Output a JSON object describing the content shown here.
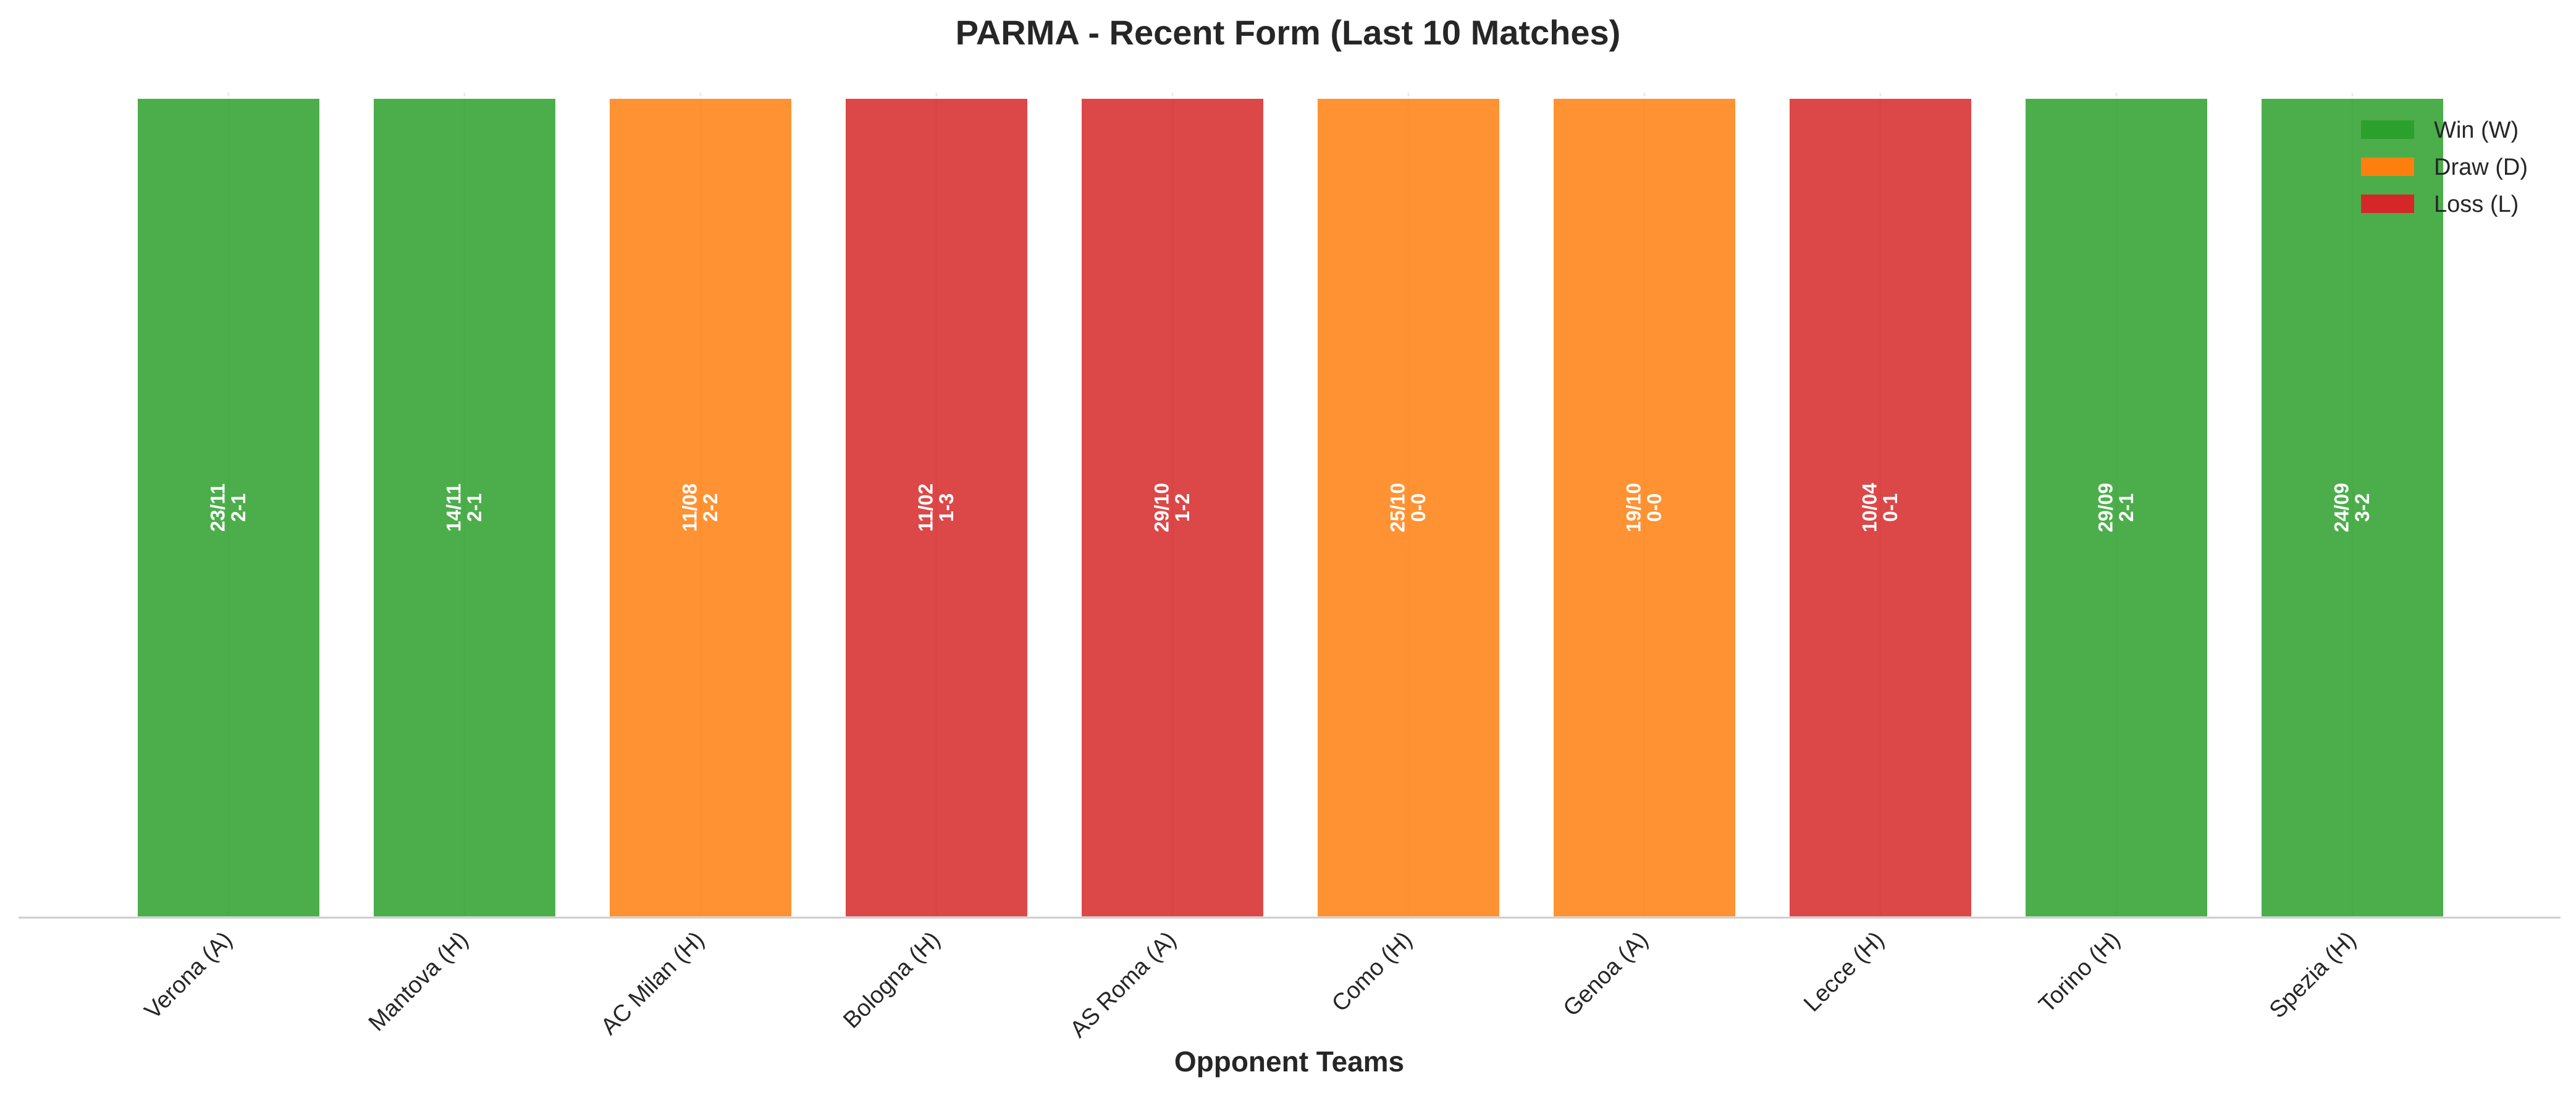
{
  "chart_data": {
    "type": "bar",
    "title": "PARMA - Recent Form (Last 10 Matches)",
    "xlabel": "Opponent Teams",
    "ylabel": "",
    "ylim": [
      0,
      1
    ],
    "grid": "vertical lines at category centers",
    "legend_position": "top-right",
    "categories": [
      "Verona (A)",
      "Mantova (H)",
      "AC Milan (H)",
      "Bologna (H)",
      "AS Roma (A)",
      "Como (H)",
      "Genoa (A)",
      "Lecce (H)",
      "Torino (H)",
      "Spezia (H)"
    ],
    "values": [
      1,
      1,
      1,
      1,
      1,
      1,
      1,
      1,
      1,
      1
    ],
    "results": [
      "W",
      "W",
      "D",
      "L",
      "L",
      "D",
      "D",
      "L",
      "W",
      "W"
    ],
    "dates": [
      "23/11",
      "14/11",
      "11/08",
      "11/02",
      "29/10",
      "25/10",
      "19/10",
      "10/04",
      "29/09",
      "24/09"
    ],
    "scores": [
      "2-1",
      "2-1",
      "2-2",
      "1-3",
      "1-2",
      "0-0",
      "0-0",
      "0-1",
      "2-1",
      "3-2"
    ],
    "legend": [
      {
        "key": "W",
        "label": "Win (W)",
        "color": "#2ca02c"
      },
      {
        "key": "D",
        "label": "Draw (D)",
        "color": "#ff7f0e"
      },
      {
        "key": "L",
        "label": "Loss (L)",
        "color": "#d62728"
      }
    ]
  }
}
